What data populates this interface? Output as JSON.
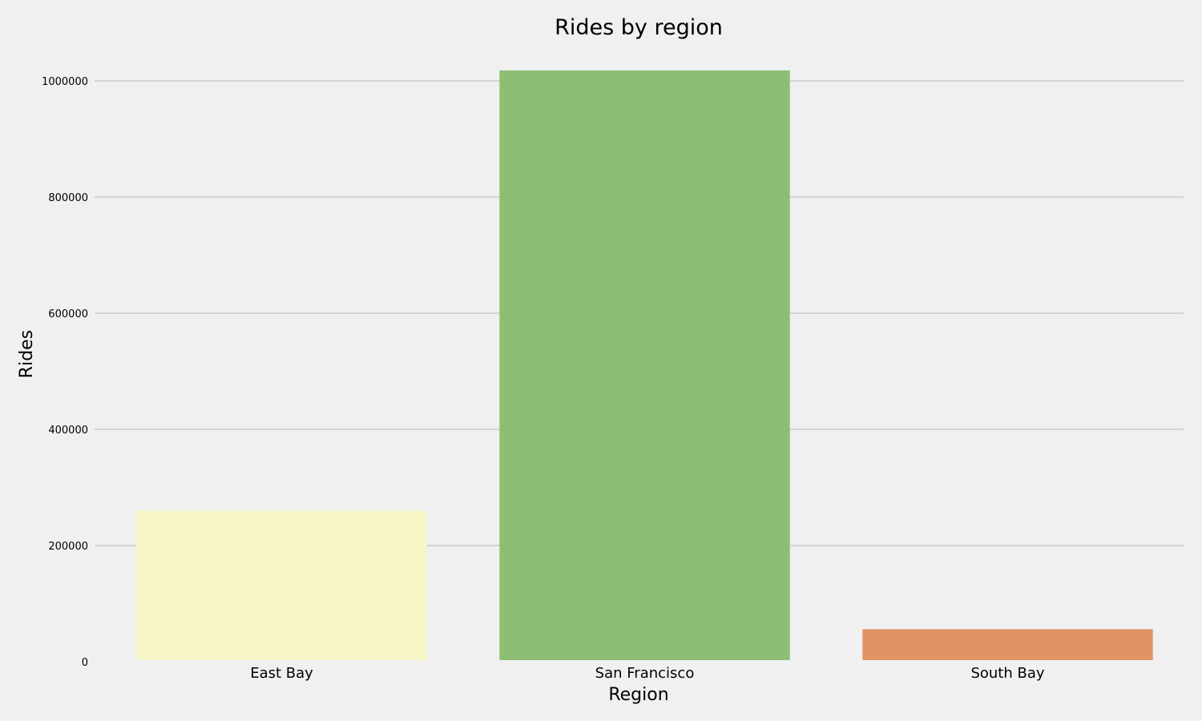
{
  "chart_data": {
    "type": "bar",
    "title": "Rides by region",
    "xlabel": "Region",
    "ylabel": "Rides",
    "categories": [
      "East Bay",
      "San Francisco",
      "South Bay"
    ],
    "values": [
      260000,
      1018000,
      56000
    ],
    "colors": [
      "#f7f6c6",
      "#8cbf74",
      "#e29366"
    ],
    "ylim": [
      0,
      1000000
    ],
    "yticks": [
      "0",
      "200000",
      "400000",
      "600000",
      "800000",
      "1000000"
    ],
    "grid": "horizontal",
    "background": "#f0f0f0",
    "grid_color": "#cbcbcb"
  }
}
